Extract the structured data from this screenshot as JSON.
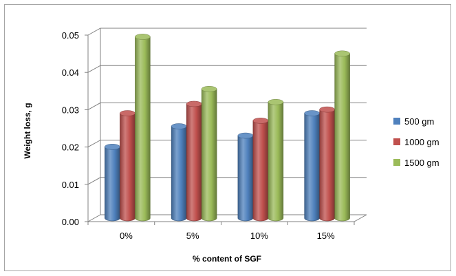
{
  "chart_data": {
    "type": "bar",
    "title": "",
    "xlabel": "% content of SGF",
    "ylabel": "Weight loss, g",
    "categories": [
      "0%",
      "5%",
      "10%",
      "15%"
    ],
    "y_tick_labels": [
      "0.00",
      "0.01",
      "0.02",
      "0.03",
      "0.04",
      "0.05"
    ],
    "ylim": [
      0,
      0.05
    ],
    "grid": true,
    "legend_position": "right",
    "series": [
      {
        "name": "500 gm",
        "values": [
          0.0195,
          0.025,
          0.0225,
          0.0285
        ],
        "color": "#4f81bd"
      },
      {
        "name": "1000 gm",
        "values": [
          0.0285,
          0.031,
          0.0265,
          0.0295
        ],
        "color": "#c0504d"
      },
      {
        "name": "1500 gm",
        "values": [
          0.049,
          0.035,
          0.0315,
          0.0445
        ],
        "color": "#9bbb59"
      }
    ]
  }
}
